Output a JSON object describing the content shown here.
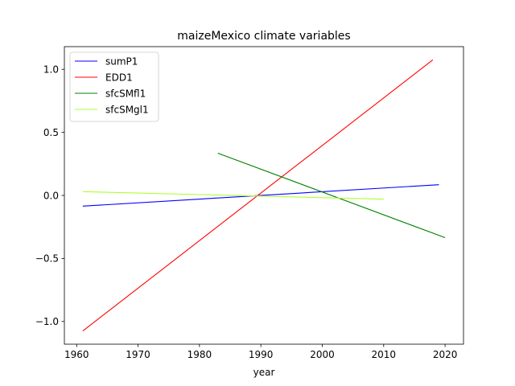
{
  "chart_data": {
    "type": "line",
    "title": "maizeMexico climate variables",
    "xlabel": "year",
    "ylabel": "",
    "xlim": [
      1958,
      2023
    ],
    "ylim": [
      -1.18,
      1.18
    ],
    "xticks": [
      1960,
      1970,
      1980,
      1990,
      2000,
      2010,
      2020
    ],
    "xtick_labels": [
      "1960",
      "1970",
      "1980",
      "1990",
      "2000",
      "2010",
      "2020"
    ],
    "yticks": [
      -1.0,
      -0.5,
      0.0,
      0.5,
      1.0
    ],
    "ytick_labels": [
      "−1.0",
      "−0.5",
      "0.0",
      "0.5",
      "1.0"
    ],
    "grid": false,
    "legend_position": "upper-left",
    "series": [
      {
        "name": "sumP1",
        "color": "#0000ff",
        "x": [
          1961,
          2019
        ],
        "y": [
          -0.085,
          0.085
        ]
      },
      {
        "name": "EDD1",
        "color": "#ff0000",
        "x": [
          1961,
          2018
        ],
        "y": [
          -1.075,
          1.075
        ]
      },
      {
        "name": "sfcSMfl1",
        "color": "#008000",
        "x": [
          1983,
          2020
        ],
        "y": [
          0.335,
          -0.335
        ]
      },
      {
        "name": "sfcSMgl1",
        "color": "#adff2f",
        "x": [
          1961,
          2010
        ],
        "y": [
          0.03,
          -0.03
        ]
      }
    ]
  }
}
